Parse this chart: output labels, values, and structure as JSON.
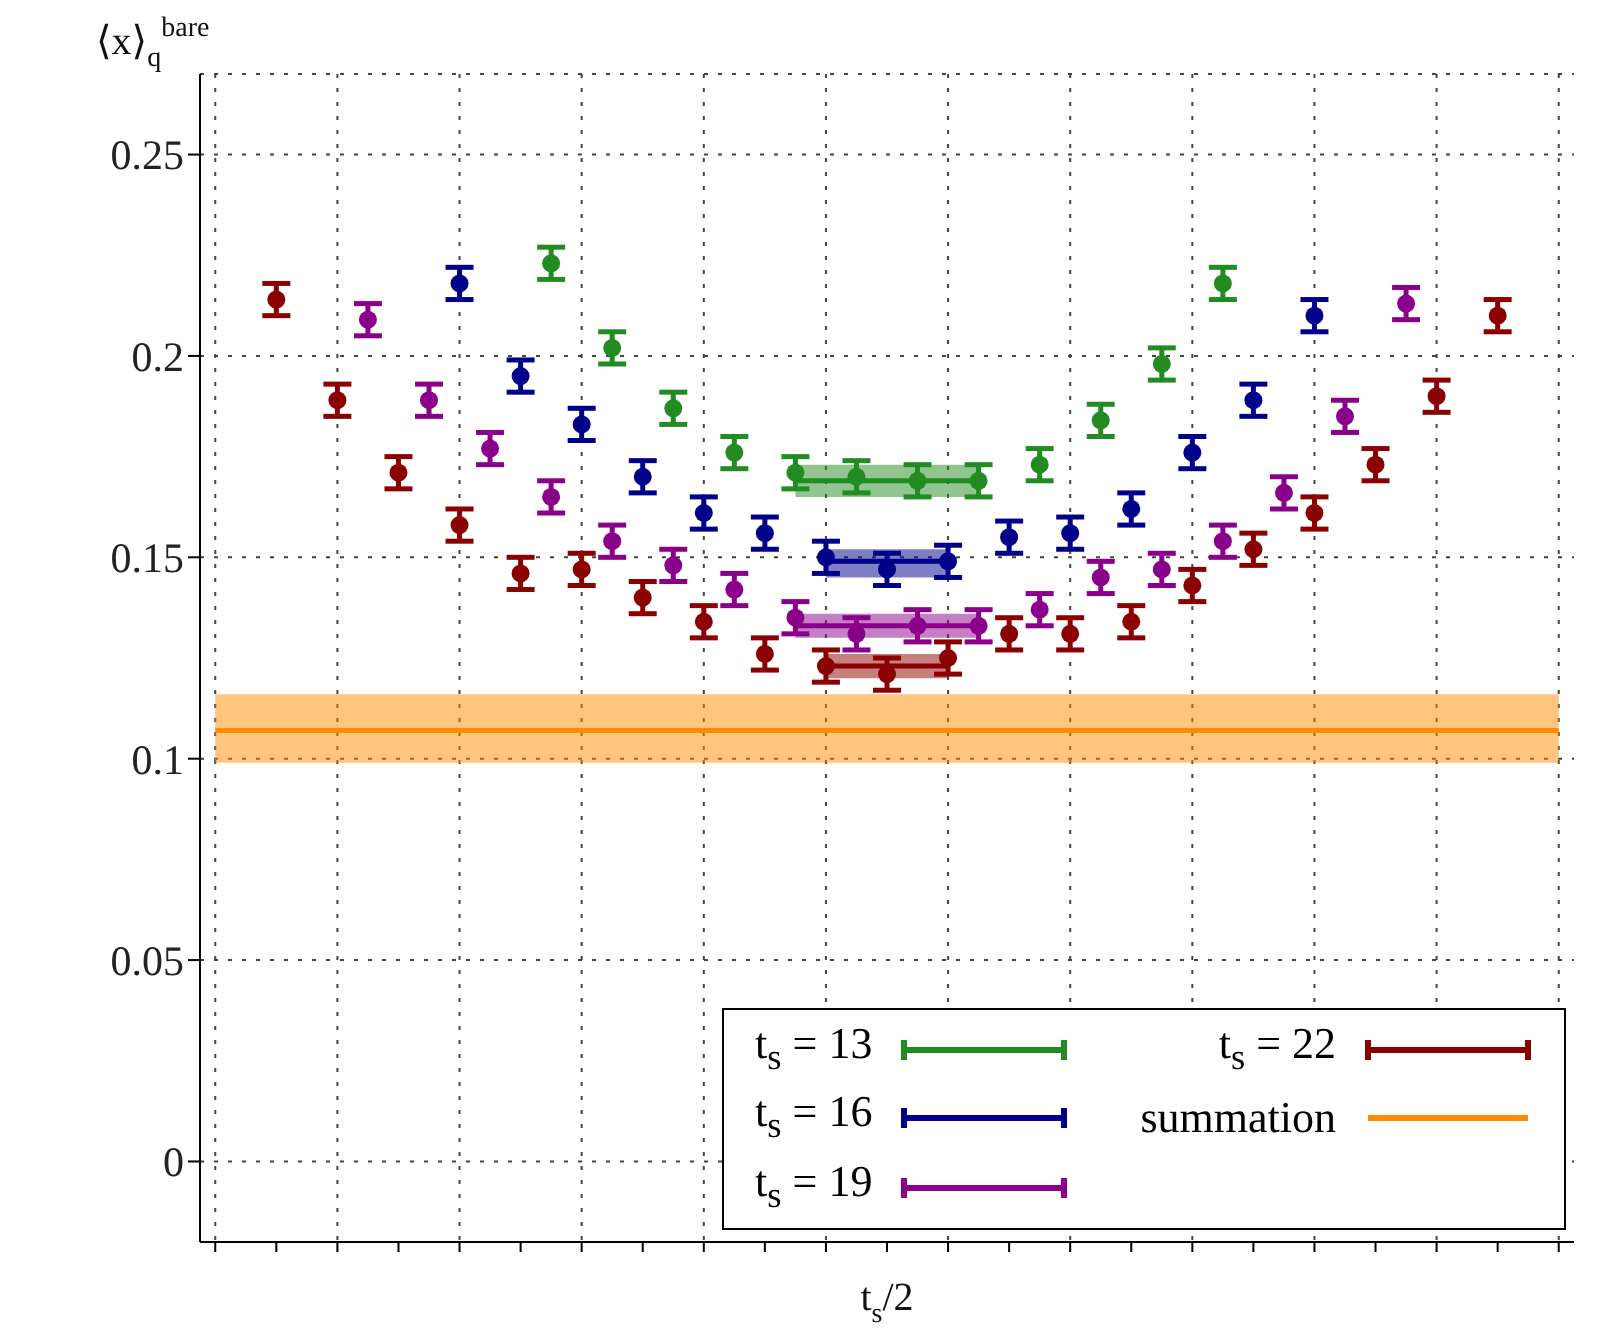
{
  "chart_data": {
    "type": "scatter",
    "ylabel": "⟨x⟩$_{q}$$^{bare}$",
    "xlabel": "t$_{s}$/2",
    "categories": [
      null,
      null,
      null,
      null,
      null,
      null,
      null,
      null,
      null,
      null,
      null,
      null,
      null,
      null,
      null,
      null,
      null,
      null,
      null,
      null,
      null,
      null,
      null,
      null,
      null,
      null,
      null,
      null,
      null,
      null,
      null,
      null,
      null,
      null,
      null,
      null,
      null,
      null,
      null,
      null,
      null,
      null,
      null,
      null,
      null
    ],
    "ylim": [
      -0.02,
      0.27
    ],
    "yticks": [
      0,
      0.05,
      0.1,
      0.15,
      0.2,
      0.25
    ],
    "tick_labels": "y",
    "grid": true,
    "legend": "bottom right",
    "series": [
      {
        "name": "t$_{s}$ = 13",
        "marker": "circle",
        "color": "#228b22",
        "values": [
          null,
          null,
          null,
          null,
          null,
          null,
          null,
          null,
          null,
          null,
          null,
          0.223,
          null,
          0.202,
          null,
          0.187,
          null,
          0.176,
          null,
          0.171,
          null,
          0.17,
          null,
          0.169,
          null,
          0.169,
          null,
          0.173,
          null,
          0.184,
          null,
          0.198,
          null,
          0.218,
          null,
          null,
          null,
          null,
          null,
          null,
          null,
          null,
          null,
          null,
          null
        ],
        "errors": [
          null,
          null,
          null,
          null,
          null,
          null,
          null,
          null,
          null,
          null,
          null,
          0.004,
          null,
          0.004,
          null,
          0.004,
          null,
          0.004,
          null,
          0.004,
          null,
          0.004,
          null,
          0.004,
          null,
          0.004,
          null,
          0.004,
          null,
          0.004,
          null,
          0.004,
          null,
          0.004,
          null,
          null,
          null,
          null,
          null,
          null,
          null,
          null,
          null,
          null,
          null
        ]
      },
      {
        "name": "t$_{s}$ = 16",
        "marker": "circle",
        "color": "#00008b",
        "values": [
          null,
          null,
          null,
          null,
          null,
          null,
          null,
          null,
          0.218,
          null,
          0.195,
          null,
          0.183,
          null,
          0.17,
          null,
          0.161,
          null,
          0.156,
          null,
          0.15,
          null,
          0.147,
          null,
          0.149,
          null,
          0.155,
          null,
          0.156,
          null,
          0.162,
          null,
          0.176,
          null,
          0.189,
          null,
          0.21,
          null,
          null,
          null,
          null,
          null,
          null,
          null,
          null
        ],
        "errors": [
          null,
          null,
          null,
          null,
          null,
          null,
          null,
          null,
          0.004,
          null,
          0.004,
          null,
          0.004,
          null,
          0.004,
          null,
          0.004,
          null,
          0.004,
          null,
          0.004,
          null,
          0.004,
          null,
          0.004,
          null,
          0.004,
          null,
          0.004,
          null,
          0.004,
          null,
          0.004,
          null,
          0.004,
          null,
          0.004,
          null,
          null,
          null,
          null,
          null,
          null,
          null,
          null
        ]
      },
      {
        "name": "t$_{s}$ = 19",
        "marker": "circle",
        "color": "#8b008b",
        "values": [
          null,
          null,
          null,
          null,
          null,
          0.209,
          null,
          0.189,
          null,
          0.177,
          null,
          0.165,
          null,
          0.154,
          null,
          0.148,
          null,
          0.142,
          null,
          0.135,
          null,
          0.131,
          null,
          0.133,
          null,
          0.133,
          null,
          0.137,
          null,
          0.145,
          null,
          0.147,
          null,
          0.154,
          null,
          0.166,
          null,
          0.185,
          null,
          0.213,
          null,
          null,
          null,
          null,
          null
        ],
        "errors": [
          null,
          null,
          null,
          null,
          null,
          0.004,
          null,
          0.004,
          null,
          0.004,
          null,
          0.004,
          null,
          0.004,
          null,
          0.004,
          null,
          0.004,
          null,
          0.004,
          null,
          0.004,
          null,
          0.004,
          null,
          0.004,
          null,
          0.004,
          null,
          0.004,
          null,
          0.004,
          null,
          0.004,
          null,
          0.004,
          null,
          0.004,
          null,
          0.004,
          null,
          null,
          null,
          null,
          null
        ]
      },
      {
        "name": "t$_{s}$ = 22",
        "marker": "circle",
        "color": "#8b0000",
        "values": [
          null,
          null,
          0.214,
          null,
          0.189,
          null,
          0.171,
          null,
          0.158,
          null,
          0.146,
          null,
          0.147,
          null,
          0.14,
          null,
          0.134,
          null,
          0.126,
          null,
          0.123,
          null,
          0.121,
          null,
          0.125,
          null,
          0.131,
          null,
          0.131,
          null,
          0.134,
          null,
          0.143,
          null,
          0.152,
          null,
          0.161,
          null,
          0.173,
          null,
          0.19,
          null,
          0.21,
          null,
          null
        ],
        "errors": [
          null,
          null,
          0.004,
          null,
          0.004,
          null,
          0.004,
          null,
          0.004,
          null,
          0.004,
          null,
          0.004,
          null,
          0.004,
          null,
          0.004,
          null,
          0.004,
          null,
          0.004,
          null,
          0.004,
          null,
          0.004,
          null,
          0.004,
          null,
          0.004,
          null,
          0.004,
          null,
          0.004,
          null,
          0.004,
          null,
          0.004,
          null,
          0.004,
          null,
          0.004,
          null,
          0.004,
          null,
          null
        ]
      },
      {
        "type": "line",
        "name": "summation",
        "color": "#ff8c00",
        "values": [
          0.107,
          0.107,
          0.107,
          0.107,
          0.107,
          0.107,
          0.107,
          0.107,
          0.107,
          0.107,
          0.107,
          0.107,
          0.107,
          0.107,
          0.107,
          0.107,
          0.107,
          0.107,
          0.107,
          0.107,
          0.107,
          0.107,
          0.107,
          0.107,
          0.107,
          0.107,
          0.107,
          0.107,
          0.107,
          0.107,
          0.107,
          0.107,
          0.107,
          0.107,
          0.107,
          0.107,
          0.107,
          0.107,
          0.107,
          0.107,
          0.107,
          0.107,
          0.107,
          0.107,
          0.107
        ],
        "lower": [
          0.099,
          0.099,
          0.099,
          0.099,
          0.099,
          0.099,
          0.099,
          0.099,
          0.099,
          0.099,
          0.099,
          0.099,
          0.099,
          0.099,
          0.099,
          0.099,
          0.099,
          0.099,
          0.099,
          0.099,
          0.099,
          0.099,
          0.099,
          0.099,
          0.099,
          0.099,
          0.099,
          0.099,
          0.099,
          0.099,
          0.099,
          0.099,
          0.099,
          0.099,
          0.099,
          0.099,
          0.099,
          0.099,
          0.099,
          0.099,
          0.099,
          0.099,
          0.099,
          0.099,
          0.099
        ],
        "upper": [
          0.116,
          0.116,
          0.116,
          0.116,
          0.116,
          0.116,
          0.116,
          0.116,
          0.116,
          0.116,
          0.116,
          0.116,
          0.116,
          0.116,
          0.116,
          0.116,
          0.116,
          0.116,
          0.116,
          0.116,
          0.116,
          0.116,
          0.116,
          0.116,
          0.116,
          0.116,
          0.116,
          0.116,
          0.116,
          0.116,
          0.116,
          0.116,
          0.116,
          0.116,
          0.116,
          0.116,
          0.116,
          0.116,
          0.116,
          0.116,
          0.116,
          0.116,
          0.116,
          0.116,
          0.116
        ]
      },
      {
        "type": "line",
        "color": "#228b22",
        "values": [
          null,
          null,
          null,
          null,
          null,
          null,
          null,
          null,
          null,
          null,
          null,
          null,
          null,
          null,
          null,
          null,
          null,
          null,
          null,
          0.169,
          null,
          0.169,
          null,
          0.169,
          null,
          0.169,
          null,
          null,
          null,
          null,
          null,
          null,
          null,
          null,
          null,
          null,
          null,
          null,
          null,
          null,
          null,
          null,
          null,
          null,
          null
        ],
        "lower": [
          null,
          null,
          null,
          null,
          null,
          null,
          null,
          null,
          null,
          null,
          null,
          null,
          null,
          null,
          null,
          null,
          null,
          null,
          null,
          0.165,
          null,
          0.165,
          null,
          0.165,
          null,
          0.165,
          null,
          null,
          null,
          null,
          null,
          null,
          null,
          null,
          null,
          null,
          null,
          null,
          null,
          null,
          null,
          null,
          null,
          null,
          null
        ],
        "upper": [
          null,
          null,
          null,
          null,
          null,
          null,
          null,
          null,
          null,
          null,
          null,
          null,
          null,
          null,
          null,
          null,
          null,
          null,
          null,
          0.173,
          null,
          0.173,
          null,
          0.173,
          null,
          0.173,
          null,
          null,
          null,
          null,
          null,
          null,
          null,
          null,
          null,
          null,
          null,
          null,
          null,
          null,
          null,
          null,
          null,
          null,
          null
        ]
      },
      {
        "type": "line",
        "color": "#00008b",
        "values": [
          null,
          null,
          null,
          null,
          null,
          null,
          null,
          null,
          null,
          null,
          null,
          null,
          null,
          null,
          null,
          null,
          null,
          null,
          null,
          null,
          0.149,
          null,
          0.149,
          null,
          0.149,
          null,
          null,
          null,
          null,
          null,
          null,
          null,
          null,
          null,
          null,
          null,
          null,
          null,
          null,
          null,
          null,
          null,
          null,
          null,
          null
        ],
        "lower": [
          null,
          null,
          null,
          null,
          null,
          null,
          null,
          null,
          null,
          null,
          null,
          null,
          null,
          null,
          null,
          null,
          null,
          null,
          null,
          null,
          0.145,
          null,
          0.145,
          null,
          0.145,
          null,
          null,
          null,
          null,
          null,
          null,
          null,
          null,
          null,
          null,
          null,
          null,
          null,
          null,
          null,
          null,
          null,
          null,
          null,
          null
        ],
        "upper": [
          null,
          null,
          null,
          null,
          null,
          null,
          null,
          null,
          null,
          null,
          null,
          null,
          null,
          null,
          null,
          null,
          null,
          null,
          null,
          null,
          0.152,
          null,
          0.152,
          null,
          0.152,
          null,
          null,
          null,
          null,
          null,
          null,
          null,
          null,
          null,
          null,
          null,
          null,
          null,
          null,
          null,
          null,
          null,
          null,
          null,
          null
        ]
      },
      {
        "type": "line",
        "color": "#8b008b",
        "values": [
          null,
          null,
          null,
          null,
          null,
          null,
          null,
          null,
          null,
          null,
          null,
          null,
          null,
          null,
          null,
          null,
          null,
          null,
          null,
          0.133,
          null,
          0.133,
          null,
          0.133,
          null,
          0.133,
          null,
          null,
          null,
          null,
          null,
          null,
          null,
          null,
          null,
          null,
          null,
          null,
          null,
          null,
          null,
          null,
          null,
          null,
          null
        ],
        "lower": [
          null,
          null,
          null,
          null,
          null,
          null,
          null,
          null,
          null,
          null,
          null,
          null,
          null,
          null,
          null,
          null,
          null,
          null,
          null,
          0.13,
          null,
          0.13,
          null,
          0.13,
          null,
          0.13,
          null,
          null,
          null,
          null,
          null,
          null,
          null,
          null,
          null,
          null,
          null,
          null,
          null,
          null,
          null,
          null,
          null,
          null,
          null
        ],
        "upper": [
          null,
          null,
          null,
          null,
          null,
          null,
          null,
          null,
          null,
          null,
          null,
          null,
          null,
          null,
          null,
          null,
          null,
          null,
          null,
          0.136,
          null,
          0.136,
          null,
          0.136,
          null,
          0.136,
          null,
          null,
          null,
          null,
          null,
          null,
          null,
          null,
          null,
          null,
          null,
          null,
          null,
          null,
          null,
          null,
          null,
          null,
          null
        ]
      },
      {
        "type": "line",
        "color": "#8b0000",
        "values": [
          null,
          null,
          null,
          null,
          null,
          null,
          null,
          null,
          null,
          null,
          null,
          null,
          null,
          null,
          null,
          null,
          null,
          null,
          null,
          null,
          0.123,
          null,
          0.123,
          null,
          0.123,
          null,
          null,
          null,
          null,
          null,
          null,
          null,
          null,
          null,
          null,
          null,
          null,
          null,
          null,
          null,
          null,
          null,
          null,
          null,
          null
        ],
        "lower": [
          null,
          null,
          null,
          null,
          null,
          null,
          null,
          null,
          null,
          null,
          null,
          null,
          null,
          null,
          null,
          null,
          null,
          null,
          null,
          null,
          0.12,
          null,
          0.12,
          null,
          0.12,
          null,
          null,
          null,
          null,
          null,
          null,
          null,
          null,
          null,
          null,
          null,
          null,
          null,
          null,
          null,
          null,
          null,
          null,
          null,
          null
        ],
        "upper": [
          null,
          null,
          null,
          null,
          null,
          null,
          null,
          null,
          null,
          null,
          null,
          null,
          null,
          null,
          null,
          null,
          null,
          null,
          null,
          null,
          0.126,
          null,
          0.126,
          null,
          0.126,
          null,
          null,
          null,
          null,
          null,
          null,
          null,
          null,
          null,
          null,
          null,
          null,
          null,
          null,
          null,
          null,
          null,
          null,
          null,
          null
        ]
      }
    ]
  }
}
